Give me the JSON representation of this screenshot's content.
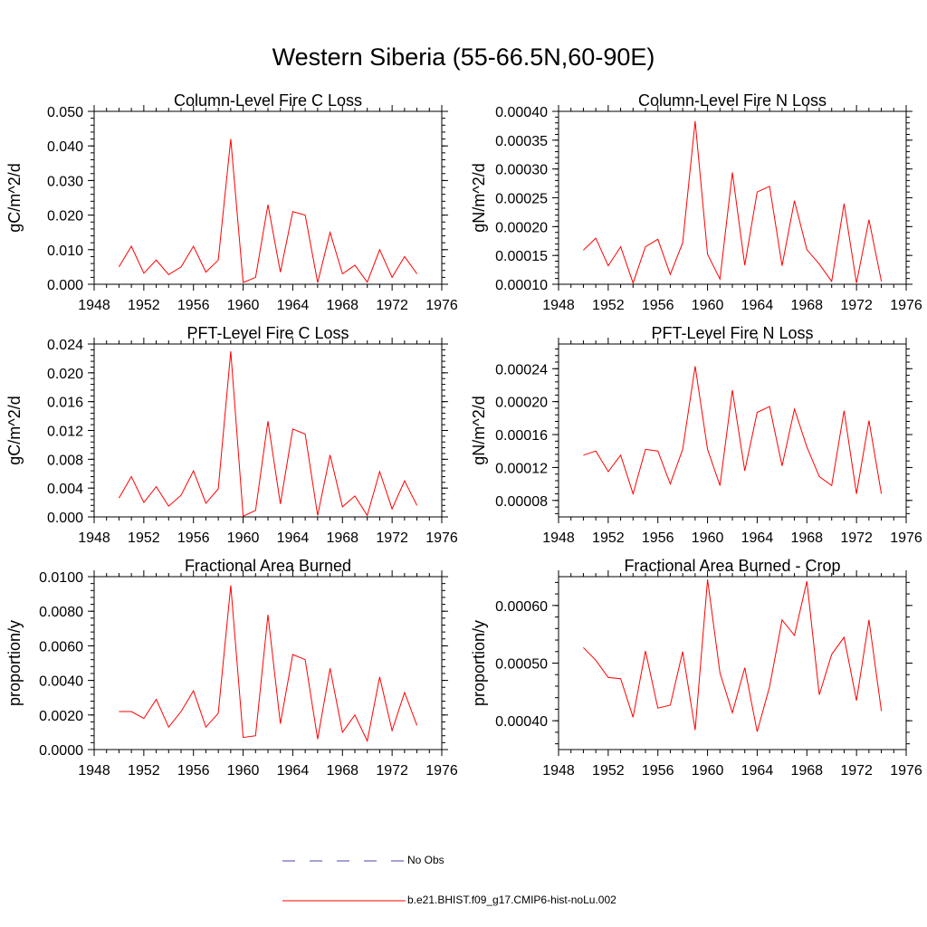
{
  "title": "Western Siberia (55-66.5N,60-90E)",
  "legend": [
    {
      "label": "No Obs",
      "color": "#4444aa",
      "style": "dashed"
    },
    {
      "label": "b.e21.BHIST.f09_g17.CMIP6-hist-noLu.002",
      "color": "#ff0000",
      "style": "solid"
    }
  ],
  "chart_data": [
    {
      "type": "line",
      "title": "Column-Level Fire C Loss",
      "ylabel": "gC/m^2/d",
      "xlim": [
        1948,
        1976
      ],
      "ylim": [
        0,
        0.05
      ],
      "xticks": [
        1948,
        1952,
        1956,
        1960,
        1964,
        1968,
        1972,
        1976
      ],
      "yticks": [
        0,
        0.01,
        0.02,
        0.03,
        0.04,
        0.05
      ],
      "yticklabels": [
        "0.000",
        "0.010",
        "0.020",
        "0.030",
        "0.040",
        "0.050"
      ],
      "x": [
        1950,
        1951,
        1952,
        1953,
        1954,
        1955,
        1956,
        1957,
        1958,
        1959,
        1960,
        1961,
        1962,
        1963,
        1964,
        1965,
        1966,
        1967,
        1968,
        1969,
        1970,
        1971,
        1972,
        1973,
        1974
      ],
      "series": [
        {
          "color": "#ff0000",
          "values": [
            0.005,
            0.011,
            0.0032,
            0.007,
            0.0028,
            0.005,
            0.011,
            0.0035,
            0.007,
            0.042,
            0.0005,
            0.002,
            0.023,
            0.0035,
            0.021,
            0.02,
            0.0005,
            0.015,
            0.003,
            0.0055,
            0.0006,
            0.01,
            0.002,
            0.008,
            0.003
          ]
        }
      ]
    },
    {
      "type": "line",
      "title": "Column-Level Fire N Loss",
      "ylabel": "gN/m^2/d",
      "xlim": [
        1948,
        1976
      ],
      "ylim": [
        0.0001,
        0.0004
      ],
      "xticks": [
        1948,
        1952,
        1956,
        1960,
        1964,
        1968,
        1972,
        1976
      ],
      "yticks": [
        0.0001,
        0.00015,
        0.0002,
        0.00025,
        0.0003,
        0.00035,
        0.0004
      ],
      "yticklabels": [
        "0.00010",
        "0.00015",
        "0.00020",
        "0.00025",
        "0.00030",
        "0.00035",
        "0.00040"
      ],
      "x": [
        1950,
        1951,
        1952,
        1953,
        1954,
        1955,
        1956,
        1957,
        1958,
        1959,
        1960,
        1961,
        1962,
        1963,
        1964,
        1965,
        1966,
        1967,
        1968,
        1969,
        1970,
        1971,
        1972,
        1973,
        1974
      ],
      "series": [
        {
          "color": "#ff0000",
          "values": [
            0.000159,
            0.00018,
            0.000132,
            0.000165,
            0.000102,
            0.000165,
            0.000178,
            0.000117,
            0.000172,
            0.000383,
            0.000152,
            0.000109,
            0.000294,
            0.000133,
            0.00026,
            0.00027,
            0.000132,
            0.000245,
            0.00016,
            0.000135,
            0.000105,
            0.00024,
            0.000102,
            0.000212,
            0.000105
          ]
        }
      ]
    },
    {
      "type": "line",
      "title": "PFT-Level Fire C Loss",
      "ylabel": "gC/m^2/d",
      "xlim": [
        1948,
        1976
      ],
      "ylim": [
        0,
        0.024
      ],
      "xticks": [
        1948,
        1952,
        1956,
        1960,
        1964,
        1968,
        1972,
        1976
      ],
      "yticks": [
        0,
        0.004,
        0.008,
        0.012,
        0.016,
        0.02,
        0.024
      ],
      "yticklabels": [
        "0.000",
        "0.004",
        "0.008",
        "0.012",
        "0.016",
        "0.020",
        "0.024"
      ],
      "x": [
        1950,
        1951,
        1952,
        1953,
        1954,
        1955,
        1956,
        1957,
        1958,
        1959,
        1960,
        1961,
        1962,
        1963,
        1964,
        1965,
        1966,
        1967,
        1968,
        1969,
        1970,
        1971,
        1972,
        1973,
        1974
      ],
      "series": [
        {
          "color": "#ff0000",
          "values": [
            0.0026,
            0.0056,
            0.002,
            0.0042,
            0.0015,
            0.003,
            0.0064,
            0.0019,
            0.0039,
            0.023,
            0.0001,
            0.0009,
            0.0133,
            0.0018,
            0.0122,
            0.0115,
            0.0002,
            0.0086,
            0.0014,
            0.0029,
            0.0002,
            0.0063,
            0.0011,
            0.005,
            0.0016
          ]
        }
      ]
    },
    {
      "type": "line",
      "title": "PFT-Level Fire N Loss",
      "ylabel": "gN/m^2/d",
      "xlim": [
        1948,
        1976
      ],
      "ylim": [
        6e-05,
        0.00027
      ],
      "xticks": [
        1948,
        1952,
        1956,
        1960,
        1964,
        1968,
        1972,
        1976
      ],
      "yticks": [
        8e-05,
        0.00012,
        0.00016,
        0.0002,
        0.00024
      ],
      "yticklabels": [
        "0.00008",
        "0.00012",
        "0.00016",
        "0.00020",
        "0.00024"
      ],
      "x": [
        1950,
        1951,
        1952,
        1953,
        1954,
        1955,
        1956,
        1957,
        1958,
        1959,
        1960,
        1961,
        1962,
        1963,
        1964,
        1965,
        1966,
        1967,
        1968,
        1969,
        1970,
        1971,
        1972,
        1973,
        1974
      ],
      "series": [
        {
          "color": "#ff0000",
          "values": [
            0.000135,
            0.00014,
            0.000115,
            0.000135,
            8.8e-05,
            0.000142,
            0.00014,
            0.0001,
            0.000142,
            0.000243,
            0.000142,
            9.8e-05,
            0.000214,
            0.000116,
            0.000187,
            0.000194,
            0.000122,
            0.000191,
            0.000145,
            0.000109,
            9.8e-05,
            0.000189,
            8.8e-05,
            0.000177,
            8.8e-05
          ]
        }
      ]
    },
    {
      "type": "line",
      "title": "Fractional Area Burned",
      "ylabel": "proportion/y",
      "xlim": [
        1948,
        1976
      ],
      "ylim": [
        0,
        0.01
      ],
      "xticks": [
        1948,
        1952,
        1956,
        1960,
        1964,
        1968,
        1972,
        1976
      ],
      "yticks": [
        0,
        0.002,
        0.004,
        0.006,
        0.008,
        0.01
      ],
      "yticklabels": [
        "0.0000",
        "0.0020",
        "0.0040",
        "0.0060",
        "0.0080",
        "0.0100"
      ],
      "x": [
        1950,
        1951,
        1952,
        1953,
        1954,
        1955,
        1956,
        1957,
        1958,
        1959,
        1960,
        1961,
        1962,
        1963,
        1964,
        1965,
        1966,
        1967,
        1968,
        1969,
        1970,
        1971,
        1972,
        1973,
        1974
      ],
      "series": [
        {
          "color": "#ff0000",
          "values": [
            0.0022,
            0.0022,
            0.0018,
            0.0029,
            0.0013,
            0.0022,
            0.0034,
            0.0013,
            0.0021,
            0.0095,
            0.0007,
            0.0008,
            0.0078,
            0.0015,
            0.0055,
            0.0052,
            0.0006,
            0.0047,
            0.001,
            0.002,
            0.0005,
            0.0042,
            0.0011,
            0.0033,
            0.0014
          ]
        }
      ]
    },
    {
      "type": "line",
      "title": "Fractional Area Burned - Crop",
      "ylabel": "proportion/y",
      "xlim": [
        1948,
        1976
      ],
      "ylim": [
        0.00035,
        0.00065
      ],
      "xticks": [
        1948,
        1952,
        1956,
        1960,
        1964,
        1968,
        1972,
        1976
      ],
      "yticks": [
        0.0004,
        0.0005,
        0.0006
      ],
      "yticklabels": [
        "0.00040",
        "0.00050",
        "0.00060"
      ],
      "x": [
        1950,
        1951,
        1952,
        1953,
        1954,
        1955,
        1956,
        1957,
        1958,
        1959,
        1960,
        1961,
        1962,
        1963,
        1964,
        1965,
        1966,
        1967,
        1968,
        1969,
        1970,
        1971,
        1972,
        1973,
        1974
      ],
      "series": [
        {
          "color": "#ff0000",
          "values": [
            0.000527,
            0.000505,
            0.000475,
            0.000473,
            0.000406,
            0.000521,
            0.000422,
            0.000427,
            0.00052,
            0.000384,
            0.000645,
            0.000483,
            0.000414,
            0.000492,
            0.000381,
            0.000459,
            0.000575,
            0.000548,
            0.000642,
            0.000445,
            0.000515,
            0.000545,
            0.000435,
            0.000575,
            0.000417
          ]
        }
      ]
    }
  ]
}
